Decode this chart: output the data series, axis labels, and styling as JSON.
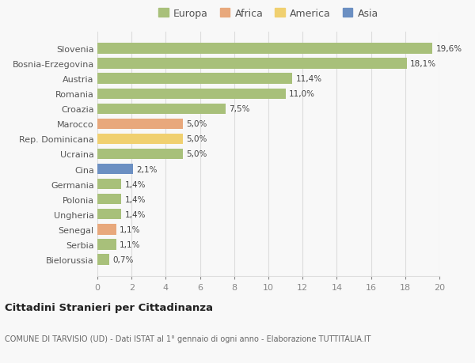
{
  "categories": [
    "Bielorussia",
    "Serbia",
    "Senegal",
    "Ungheria",
    "Polonia",
    "Germania",
    "Cina",
    "Ucraina",
    "Rep. Dominicana",
    "Marocco",
    "Croazia",
    "Romania",
    "Austria",
    "Bosnia-Erzegovina",
    "Slovenia"
  ],
  "values": [
    0.7,
    1.1,
    1.1,
    1.4,
    1.4,
    1.4,
    2.1,
    5.0,
    5.0,
    5.0,
    7.5,
    11.0,
    11.4,
    18.1,
    19.6
  ],
  "labels": [
    "0,7%",
    "1,1%",
    "1,1%",
    "1,4%",
    "1,4%",
    "1,4%",
    "2,1%",
    "5,0%",
    "5,0%",
    "5,0%",
    "7,5%",
    "11,0%",
    "11,4%",
    "18,1%",
    "19,6%"
  ],
  "colors": [
    "#a8c07a",
    "#a8c07a",
    "#e8a87c",
    "#a8c07a",
    "#a8c07a",
    "#a8c07a",
    "#6b8fc2",
    "#a8c07a",
    "#f0d070",
    "#e8a87c",
    "#a8c07a",
    "#a8c07a",
    "#a8c07a",
    "#a8c07a",
    "#a8c07a"
  ],
  "legend_labels": [
    "Europa",
    "Africa",
    "America",
    "Asia"
  ],
  "legend_colors": [
    "#a8c07a",
    "#e8a87c",
    "#f0d070",
    "#6b8fc2"
  ],
  "xlim": [
    0,
    20
  ],
  "xticks": [
    0,
    2,
    4,
    6,
    8,
    10,
    12,
    14,
    16,
    18,
    20
  ],
  "title": "Cittadini Stranieri per Cittadinanza",
  "subtitle": "COMUNE DI TARVISIO (UD) - Dati ISTAT al 1° gennaio di ogni anno - Elaborazione TUTTITALIA.IT",
  "bg_color": "#f8f8f8",
  "grid_color": "#dddddd",
  "bar_height": 0.72
}
